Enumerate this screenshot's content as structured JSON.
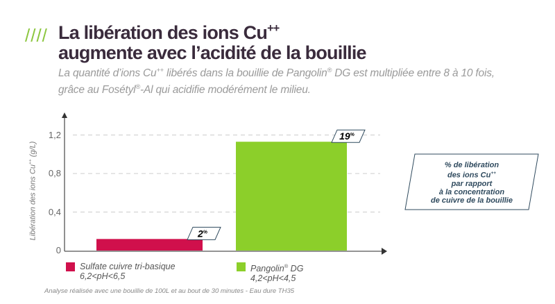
{
  "header": {
    "slashes": "////",
    "title_line1": "La libération des ions Cu",
    "title_sup": "++",
    "title_line2": "augmente avec l’acidité de la bouillie",
    "subtitle_a": "La quantité d’ions Cu",
    "subtitle_sup": "++",
    "subtitle_b": " libérés dans la bouillie de Pangolin",
    "reg": "®",
    "subtitle_c": " DG est multipliée entre 8 à 10 fois,",
    "subtitle_line2a": "grâce au Fosétyl",
    "subtitle_line2b": "-Al qui acidifie modérément le milieu."
  },
  "callout": {
    "line1": "% de libération",
    "line2": "des ions Cu",
    "line2_sup": "++",
    "line3": "par rapport",
    "line4": "à la concentration",
    "line5": "de cuivre de la bouillie"
  },
  "footnote": "Analyse réalisée avec une bouillie de 100L et au bout de 30 minutes - Eau dure TH35",
  "chart_data": {
    "type": "bar",
    "ylabel": "Libération des ions Cu++ (g/L)",
    "ylabel_main": "Libération des ions Cu",
    "ylabel_sup": "++",
    "ylabel_unit": " (g/L)",
    "ylim": [
      0,
      1.35
    ],
    "yticks": [
      {
        "v": 0,
        "label": "0"
      },
      {
        "v": 0.4,
        "label": "0,4"
      },
      {
        "v": 0.8,
        "label": "0,8"
      },
      {
        "v": 1.2,
        "label": "1,2"
      }
    ],
    "grid": true,
    "series": [
      {
        "name": "Sulfate cuivre tri-basique",
        "ph": "6,2<pH<6,5",
        "value": 0.12,
        "pct": "2",
        "pct_unit": "%",
        "color": "#d0104c"
      },
      {
        "name": "Pangolin® DG",
        "name_a": "Pangolin",
        "name_b": " DG",
        "ph": "4,2<pH<4,5",
        "value": 1.13,
        "pct": "19",
        "pct_unit": "%",
        "color": "#8ccf2a"
      }
    ],
    "legend": "bottom"
  }
}
